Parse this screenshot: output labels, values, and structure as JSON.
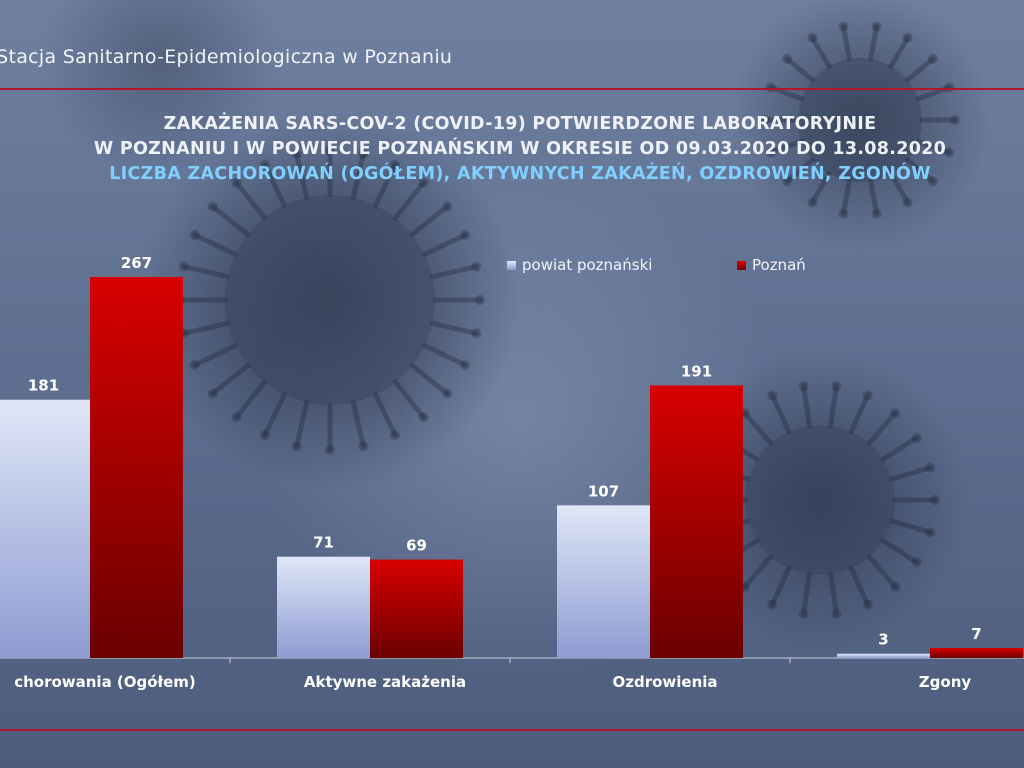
{
  "header": {
    "org_name": "wa Stacja Sanitarno-Epidemiologiczna w Poznaniu"
  },
  "title": {
    "line1": "ZAKAŻENIA SARS-COV-2 (COVID-19) POTWIERDZONE LABORATORYJNIE",
    "line2": "W POZNANIU I W POWIECIE POZNAŃSKIM W OKRESIE OD 09.03.2020 DO 13.08.2020",
    "line3": "LICZBA ZACHOROWAŃ (OGÓŁEM), AKTYWNYCH ZAKAŻEŃ, OZDROWIEŃ, ZGONÓW"
  },
  "colors": {
    "accent_rule": "#b5172a",
    "title_highlight": "#7fd0ff",
    "series_powiat": "#b9c4ec",
    "series_poznan": "#c40000"
  },
  "chart_data": {
    "type": "bar",
    "categories": [
      "chorowania (Ogółem)",
      "Aktywne zakażenia",
      "Ozdrowienia",
      "Zgony"
    ],
    "series": [
      {
        "name": "powiat poznański",
        "values": [
          181,
          71,
          107,
          3
        ]
      },
      {
        "name": "Poznań",
        "values": [
          267,
          69,
          191,
          7
        ]
      }
    ],
    "ylim": [
      0,
      267
    ],
    "grid": false,
    "legend_position": "top-right",
    "data_labels": true
  }
}
